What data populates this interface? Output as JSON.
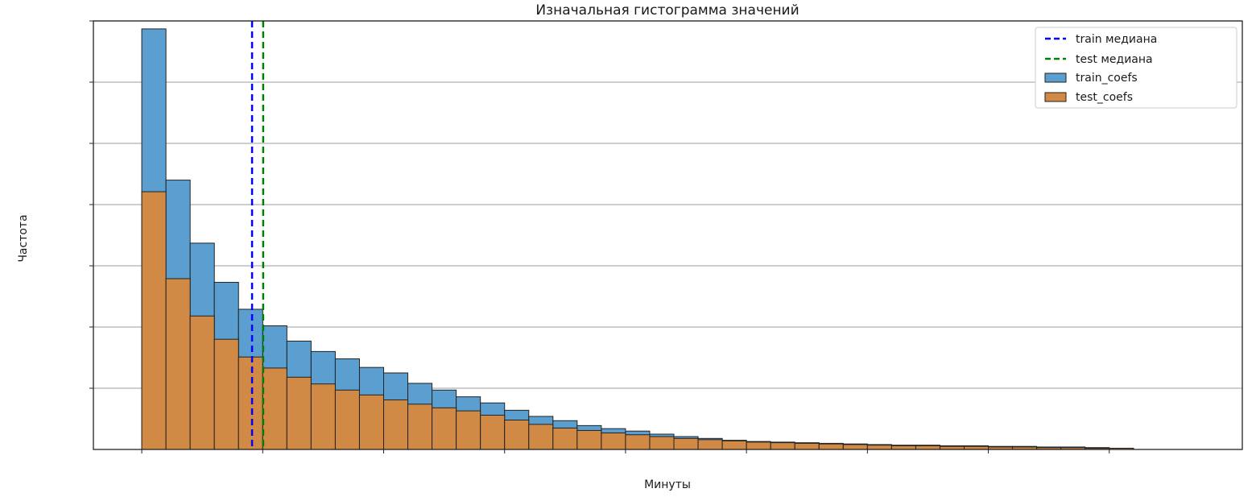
{
  "chart_data": {
    "type": "bar",
    "subtype": "overlaid-histogram",
    "title": "Изначальная гистограмма значений",
    "xlabel": "Минуты",
    "ylabel": "Частота",
    "grid": "horizontal",
    "legend_position": "top-right",
    "ylim": [
      0,
      7
    ],
    "xlim": [
      -2,
      45.5
    ],
    "bins": 41,
    "series": [
      {
        "name": "train_coefs",
        "color": "#5b9fd1",
        "values": [
          6.87,
          4.4,
          3.37,
          2.73,
          2.29,
          2.02,
          1.77,
          1.6,
          1.48,
          1.34,
          1.25,
          1.08,
          0.97,
          0.86,
          0.76,
          0.64,
          0.54,
          0.47,
          0.39,
          0.34,
          0.3,
          0.25,
          0.21,
          0.18,
          0.15,
          0.13,
          0.12,
          0.11,
          0.1,
          0.09,
          0.08,
          0.07,
          0.07,
          0.06,
          0.06,
          0.05,
          0.05,
          0.04,
          0.04,
          0.03,
          0.02
        ]
      },
      {
        "name": "test_coefs",
        "color": "#d18a45",
        "values": [
          4.21,
          2.79,
          2.18,
          1.8,
          1.51,
          1.33,
          1.18,
          1.07,
          0.97,
          0.89,
          0.81,
          0.74,
          0.68,
          0.63,
          0.56,
          0.48,
          0.41,
          0.35,
          0.31,
          0.27,
          0.24,
          0.21,
          0.18,
          0.16,
          0.14,
          0.12,
          0.11,
          0.1,
          0.09,
          0.08,
          0.07,
          0.06,
          0.06,
          0.05,
          0.05,
          0.04,
          0.04,
          0.03,
          0.03,
          0.02,
          0.02
        ]
      }
    ],
    "median_lines": [
      {
        "name": "train медиана",
        "x": 4.56,
        "color": "#0000ff",
        "style": "dashed"
      },
      {
        "name": "test медиана",
        "x": 5.02,
        "color": "#008000",
        "style": "dashed"
      }
    ]
  }
}
